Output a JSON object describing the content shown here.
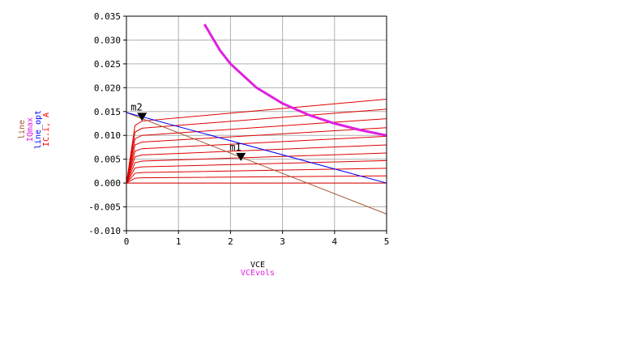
{
  "chart_data": {
    "type": "line",
    "xlim": [
      0,
      5
    ],
    "ylim": [
      -0.01,
      0.035
    ],
    "x_ticks": [
      "0",
      "1",
      "2",
      "3",
      "4",
      "5"
    ],
    "y_ticks": [
      "-0.010",
      "-0.005",
      "0.000",
      "0.005",
      "0.010",
      "0.015",
      "0.020",
      "0.025",
      "0.030",
      "0.035"
    ],
    "x_labels": [
      {
        "text": "VCE",
        "color": "#000000"
      },
      {
        "text": "VCEvols",
        "color": "#e020e0"
      }
    ],
    "y_labels": [
      {
        "text": "line",
        "color": "#a0522d"
      },
      {
        "text": "IQmax",
        "color": "#e020e0"
      },
      {
        "text": "line_opt",
        "color": "#0000ff"
      },
      {
        "text": "IC.i, A",
        "color": "#ff0000"
      }
    ],
    "grid": true,
    "curve_family": {
      "color": "#e00000",
      "knee_vce": 0.3,
      "currents_at_knee": [
        0.0,
        0.0011,
        0.0022,
        0.0034,
        0.0046,
        0.0059,
        0.0072,
        0.0086,
        0.01,
        0.0115,
        0.013
      ],
      "currents_at_5v": [
        0.0,
        0.0015,
        0.0031,
        0.0047,
        0.0063,
        0.008,
        0.0098,
        0.0116,
        0.0135,
        0.0155,
        0.0176
      ]
    },
    "series": [
      {
        "color": "#a0522d",
        "x": [
          0,
          5
        ],
        "y": [
          0.0148,
          -0.0065
        ]
      },
      {
        "color": "#0000ff",
        "x": [
          0,
          5
        ],
        "y": [
          0.0148,
          0.0
        ]
      },
      {
        "color": "#e020e0",
        "x": [
          1.5,
          1.8,
          2.0,
          2.5,
          3.0,
          3.5,
          4.0,
          4.5,
          5.0
        ],
        "y": [
          0.0333,
          0.0278,
          0.025,
          0.02,
          0.0167,
          0.0143,
          0.0125,
          0.0111,
          0.01
        ]
      }
    ],
    "markers": [
      {
        "label": "m2",
        "x": 0.3,
        "y": 0.0137
      },
      {
        "label": "m1",
        "x": 2.2,
        "y": 0.0053
      }
    ]
  }
}
